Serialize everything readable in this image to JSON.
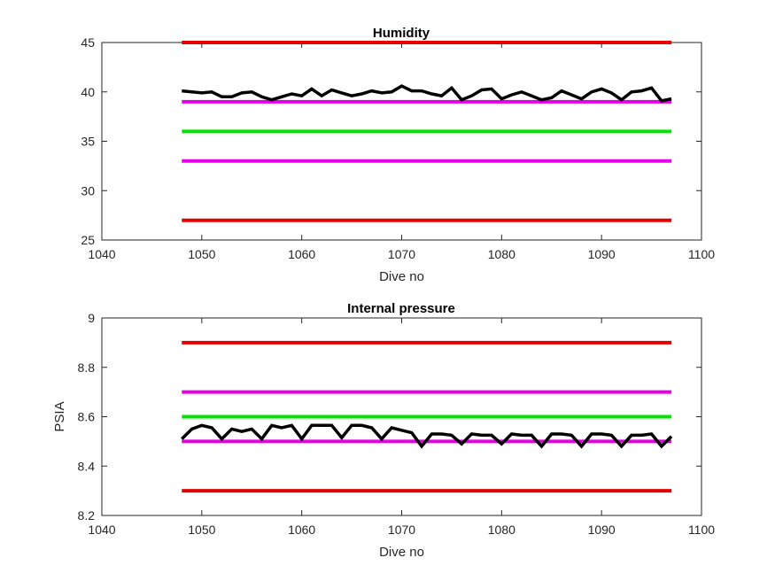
{
  "chart_data": [
    {
      "type": "line",
      "title": "Humidity",
      "xlabel": "Dive no",
      "ylabel": "",
      "xlim": [
        1040,
        1100
      ],
      "ylim": [
        25,
        45
      ],
      "x_ticks": [
        "1040",
        "1050",
        "1060",
        "1070",
        "1080",
        "1090",
        "1100"
      ],
      "y_ticks": [
        "25",
        "30",
        "35",
        "40",
        "45"
      ],
      "grid": false,
      "reference_lines": [
        {
          "y": 45,
          "color": "#e60000",
          "x_range": [
            1048,
            1097
          ]
        },
        {
          "y": 39,
          "color": "#e600e6",
          "x_range": [
            1048,
            1097
          ]
        },
        {
          "y": 36,
          "color": "#00e600",
          "x_range": [
            1048,
            1097
          ]
        },
        {
          "y": 33,
          "color": "#e600e6",
          "x_range": [
            1048,
            1097
          ]
        },
        {
          "y": 27,
          "color": "#e60000",
          "x_range": [
            1048,
            1097
          ]
        }
      ],
      "series": [
        {
          "color": "#000000",
          "x": [
            1048,
            1049,
            1050,
            1051,
            1052,
            1053,
            1054,
            1055,
            1056,
            1057,
            1058,
            1059,
            1060,
            1061,
            1062,
            1063,
            1064,
            1065,
            1066,
            1067,
            1068,
            1069,
            1070,
            1071,
            1072,
            1073,
            1074,
            1075,
            1076,
            1077,
            1078,
            1079,
            1080,
            1081,
            1082,
            1083,
            1084,
            1085,
            1086,
            1087,
            1088,
            1089,
            1090,
            1091,
            1092,
            1093,
            1094,
            1095,
            1096,
            1097
          ],
          "values": [
            40.1,
            40.0,
            39.9,
            40.0,
            39.5,
            39.5,
            39.9,
            40.0,
            39.5,
            39.2,
            39.5,
            39.8,
            39.6,
            40.3,
            39.6,
            40.2,
            39.9,
            39.6,
            39.8,
            40.1,
            39.9,
            40.0,
            40.6,
            40.1,
            40.1,
            39.8,
            39.6,
            40.4,
            39.2,
            39.6,
            40.2,
            40.3,
            39.3,
            39.7,
            40.0,
            39.6,
            39.2,
            39.4,
            40.1,
            39.7,
            39.3,
            40.0,
            40.3,
            39.9,
            39.2,
            40.0,
            40.1,
            40.4,
            39.1,
            39.3
          ]
        }
      ]
    },
    {
      "type": "line",
      "title": "Internal pressure",
      "xlabel": "Dive no",
      "ylabel": "PSIA",
      "xlim": [
        1040,
        1100
      ],
      "ylim": [
        8.2,
        9
      ],
      "x_ticks": [
        "1040",
        "1050",
        "1060",
        "1070",
        "1080",
        "1090",
        "1100"
      ],
      "y_ticks": [
        "8.2",
        "8.4",
        "8.6",
        "8.8",
        "9"
      ],
      "grid": false,
      "reference_lines": [
        {
          "y": 8.9,
          "color": "#e60000",
          "x_range": [
            1048,
            1097
          ]
        },
        {
          "y": 8.7,
          "color": "#e600e6",
          "x_range": [
            1048,
            1097
          ]
        },
        {
          "y": 8.6,
          "color": "#00e600",
          "x_range": [
            1048,
            1097
          ]
        },
        {
          "y": 8.5,
          "color": "#e600e6",
          "x_range": [
            1048,
            1097
          ]
        },
        {
          "y": 8.3,
          "color": "#e60000",
          "x_range": [
            1048,
            1097
          ]
        }
      ],
      "series": [
        {
          "color": "#000000",
          "x": [
            1048,
            1049,
            1050,
            1051,
            1052,
            1053,
            1054,
            1055,
            1056,
            1057,
            1058,
            1059,
            1060,
            1061,
            1062,
            1063,
            1064,
            1065,
            1066,
            1067,
            1068,
            1069,
            1070,
            1071,
            1072,
            1073,
            1074,
            1075,
            1076,
            1077,
            1078,
            1079,
            1080,
            1081,
            1082,
            1083,
            1084,
            1085,
            1086,
            1087,
            1088,
            1089,
            1090,
            1091,
            1092,
            1093,
            1094,
            1095,
            1096,
            1097
          ],
          "values": [
            8.51,
            8.55,
            8.565,
            8.555,
            8.51,
            8.55,
            8.54,
            8.55,
            8.51,
            8.565,
            8.555,
            8.565,
            8.51,
            8.565,
            8.565,
            8.565,
            8.515,
            8.565,
            8.565,
            8.555,
            8.51,
            8.555,
            8.545,
            8.535,
            8.48,
            8.53,
            8.53,
            8.525,
            8.49,
            8.53,
            8.525,
            8.525,
            8.49,
            8.53,
            8.525,
            8.525,
            8.48,
            8.53,
            8.53,
            8.525,
            8.48,
            8.53,
            8.53,
            8.525,
            8.48,
            8.525,
            8.525,
            8.53,
            8.48,
            8.52
          ]
        }
      ]
    }
  ]
}
